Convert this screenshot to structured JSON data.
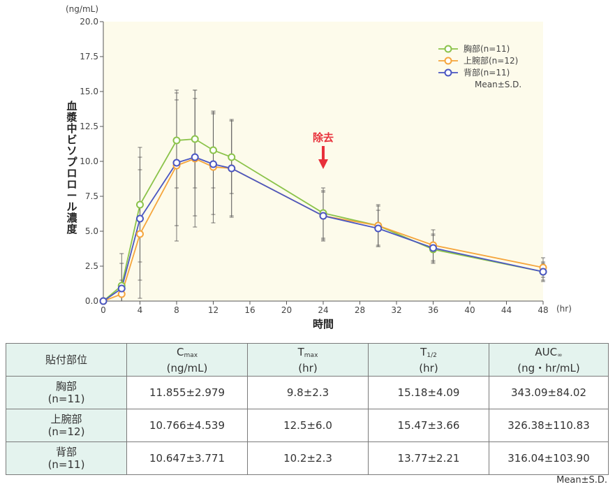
{
  "chart_data": {
    "type": "line",
    "title": "",
    "unit_label": "(ng/mL)",
    "ylabel": "血漿中ビソプロロール濃度",
    "xlabel": "時間",
    "x_unit_label": "(hr)",
    "xlim": [
      0,
      48
    ],
    "ylim": [
      0,
      20
    ],
    "x_ticks": [
      0,
      4,
      8,
      12,
      16,
      20,
      24,
      28,
      32,
      36,
      40,
      44,
      48
    ],
    "y_ticks": [
      "0.0",
      "2.5",
      "5.0",
      "7.5",
      "10.0",
      "12.5",
      "15.0",
      "17.5",
      "20.0"
    ],
    "legend_position": "top-right",
    "legend_note": "Mean±S.D.",
    "annotation": {
      "label": "除去",
      "x": 24,
      "color": "#e8303a"
    },
    "x": [
      0,
      2,
      4,
      8,
      10,
      12,
      14,
      24,
      30,
      36,
      48
    ],
    "series": [
      {
        "name": "胸部(n=11)",
        "color": "#8bc34a",
        "values": [
          0,
          1.1,
          6.9,
          11.5,
          11.6,
          10.8,
          10.3,
          6.3,
          5.4,
          3.7,
          2.1
        ],
        "sd": [
          0,
          2.3,
          4.1,
          3.4,
          3.5,
          2.7,
          2.6,
          1.8,
          1.4,
          1.0,
          0.7
        ]
      },
      {
        "name": "上腕部(n=12)",
        "color": "#f5a53c",
        "values": [
          0,
          0.5,
          4.8,
          9.7,
          10.2,
          9.6,
          9.5,
          6.1,
          5.4,
          4.0,
          2.4
        ],
        "sd": [
          0,
          1.0,
          4.6,
          5.4,
          4.9,
          4.0,
          3.5,
          1.8,
          1.5,
          1.1,
          0.7
        ]
      },
      {
        "name": "背部(n=11)",
        "color": "#4a56c2",
        "values": [
          0,
          0.9,
          5.9,
          9.9,
          10.3,
          9.8,
          9.5,
          6.1,
          5.2,
          3.8,
          2.1
        ],
        "sd": [
          0,
          1.8,
          4.4,
          4.5,
          4.2,
          3.6,
          3.4,
          1.7,
          1.3,
          1.0,
          0.6
        ]
      }
    ]
  },
  "table": {
    "headers": [
      {
        "main": "貼付部位",
        "sub": "",
        "unit": ""
      },
      {
        "main": "C",
        "sub": "max",
        "unit": "(ng/mL)"
      },
      {
        "main": "T",
        "sub": "max",
        "unit": "(hr)"
      },
      {
        "main": "T",
        "sub": "1/2",
        "unit": "(hr)"
      },
      {
        "main": "AUC",
        "sub": "∞",
        "unit": "(ng・hr/mL)"
      }
    ],
    "rows": [
      {
        "site": "胸部",
        "n": "(n=11)",
        "cmax": "11.855±2.979",
        "tmax": "9.8±2.3",
        "t_half": "15.18±4.09",
        "auc": "343.09±84.02"
      },
      {
        "site": "上腕部",
        "n": "(n=12)",
        "cmax": "10.766±4.539",
        "tmax": "12.5±6.0",
        "t_half": "15.47±3.66",
        "auc": "326.38±110.83"
      },
      {
        "site": "背部",
        "n": "(n=11)",
        "cmax": "10.647±3.771",
        "tmax": "10.2±2.3",
        "t_half": "13.77±2.21",
        "auc": "316.04±103.90"
      }
    ],
    "footer_note": "Mean±S.D."
  }
}
